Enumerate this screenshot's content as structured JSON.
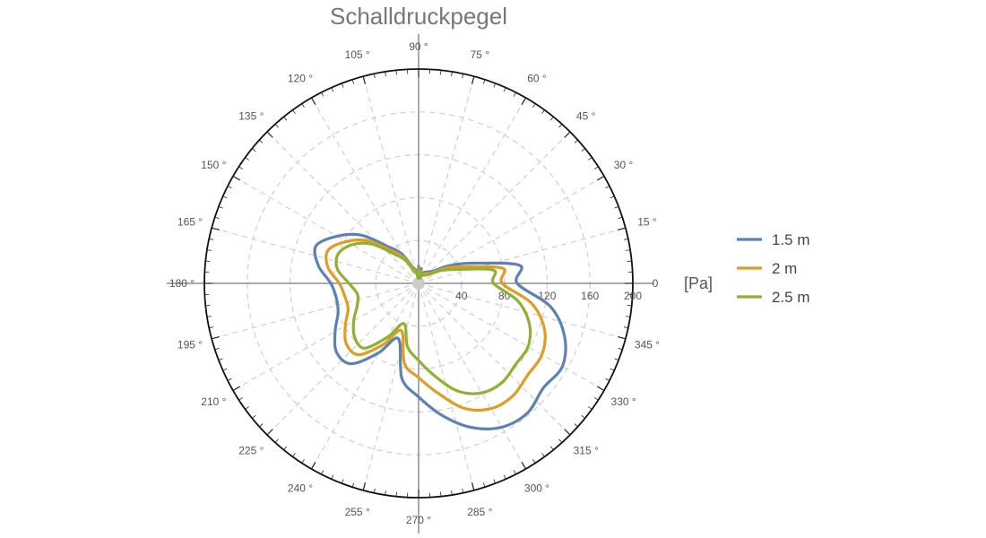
{
  "chart_data": {
    "type": "polar-line",
    "title": "Schalldruckpegel",
    "radial_unit": "[Pa]",
    "r_range": [
      0,
      200
    ],
    "r_ticks": [
      40,
      80,
      120,
      160,
      200
    ],
    "r_tick_labels": [
      "40",
      "80",
      "120",
      "160",
      "200"
    ],
    "angle_ticks_deg": [
      0,
      15,
      30,
      45,
      60,
      75,
      90,
      105,
      120,
      135,
      150,
      165,
      180,
      195,
      210,
      225,
      240,
      255,
      270,
      285,
      300,
      315,
      330,
      345
    ],
    "angle_tick_labels": [
      "0",
      "15 °",
      "30 °",
      "45 °",
      "60 °",
      "75 °",
      "90 °",
      "105 °",
      "120 °",
      "135 °",
      "150 °",
      "165 °",
      "180 °",
      "195 °",
      "210 °",
      "225 °",
      "240 °",
      "255 °",
      "270 °",
      "285 °",
      "300 °",
      "315 °",
      "330 °",
      "345 °"
    ],
    "grid": true,
    "legend_position": "right",
    "angles_deg": [
      0,
      10,
      20,
      30,
      40,
      50,
      60,
      70,
      75,
      80,
      85,
      90,
      95,
      100,
      110,
      120,
      130,
      140,
      150,
      160,
      170,
      180,
      190,
      200,
      210,
      220,
      230,
      240,
      250,
      260,
      270,
      280,
      290,
      300,
      310,
      320,
      330,
      340,
      350
    ],
    "series": [
      {
        "name": "1.5 m",
        "color": "#5e81b5",
        "r": [
          92,
          96,
          55,
          33,
          18,
          14,
          12,
          10,
          7,
          14,
          6,
          16,
          6,
          12,
          16,
          32,
          45,
          70,
          88,
          102,
          95,
          82,
          78,
          80,
          90,
          100,
          98,
          75,
          55,
          90,
          106,
          125,
          143,
          155,
          158,
          152,
          155,
          145,
          125
        ]
      },
      {
        "name": "2 m",
        "color": "#e19c24",
        "r": [
          78,
          80,
          45,
          28,
          15,
          12,
          10,
          8,
          6,
          12,
          5,
          14,
          5,
          10,
          14,
          28,
          40,
          62,
          78,
          90,
          86,
          74,
          70,
          70,
          79,
          88,
          87,
          66,
          47,
          76,
          88,
          104,
          124,
          135,
          137,
          133,
          133,
          125,
          107
        ]
      },
      {
        "name": "2.5 m",
        "color": "#8fb131",
        "r": [
          70,
          71,
          38,
          24,
          13,
          10,
          9,
          7,
          5,
          11,
          5,
          13,
          5,
          9,
          12,
          25,
          36,
          57,
          72,
          80,
          77,
          65,
          58,
          61,
          70,
          78,
          79,
          58,
          40,
          60,
          72,
          88,
          107,
          118,
          121,
          118,
          118,
          110,
          94
        ]
      }
    ]
  }
}
